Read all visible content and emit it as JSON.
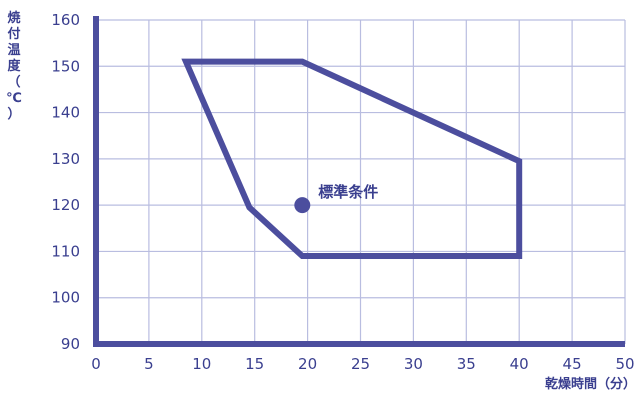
{
  "chart_data": {
    "type": "area",
    "title": "",
    "xlabel": "乾燥時間（分）",
    "ylabel": "焼付温度（℃）",
    "xlim": [
      0,
      50
    ],
    "ylim": [
      90,
      160
    ],
    "x_ticks": [
      0,
      5,
      10,
      15,
      20,
      25,
      30,
      35,
      40,
      45,
      50
    ],
    "y_ticks": [
      90,
      100,
      110,
      120,
      130,
      140,
      150,
      160
    ],
    "grid": true,
    "region": {
      "x": [
        8.5,
        19.5,
        40,
        40,
        19.5,
        14.5,
        8.5
      ],
      "y": [
        151,
        151,
        129.5,
        109,
        109,
        119.5,
        151
      ]
    },
    "point": {
      "label": "標準条件",
      "x": 19.5,
      "y": 120
    },
    "colors": {
      "line": "#4c4e9e",
      "axis": "#4c4e9e",
      "grid": "#b9bde0",
      "text": "#3a3f8f"
    }
  }
}
